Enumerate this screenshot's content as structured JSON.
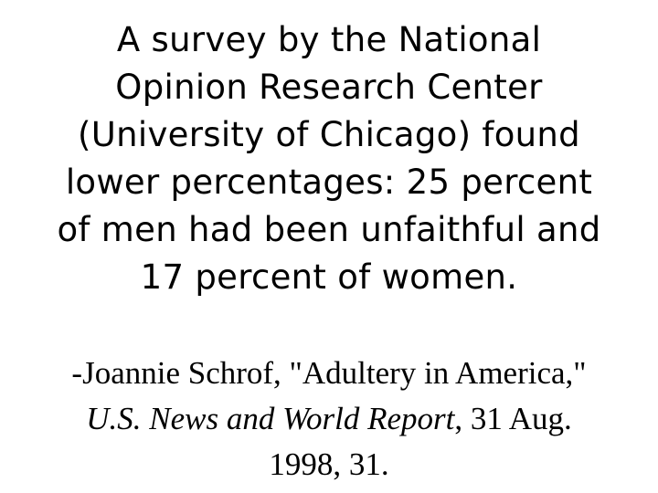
{
  "quote": {
    "lines": [
      "A survey by the National",
      "Opinion Research Center",
      "(University of Chicago) found",
      "lower percentages: 25 percent",
      "of men had been unfaithful and",
      "17 percent of women."
    ]
  },
  "citation": {
    "author_title": "-Joannie Schrof, \"Adultery in America,\"",
    "publication": "U.S. News and World Report",
    "publication_rest": ", 31 Aug.",
    "date_page": "1998, 31."
  }
}
